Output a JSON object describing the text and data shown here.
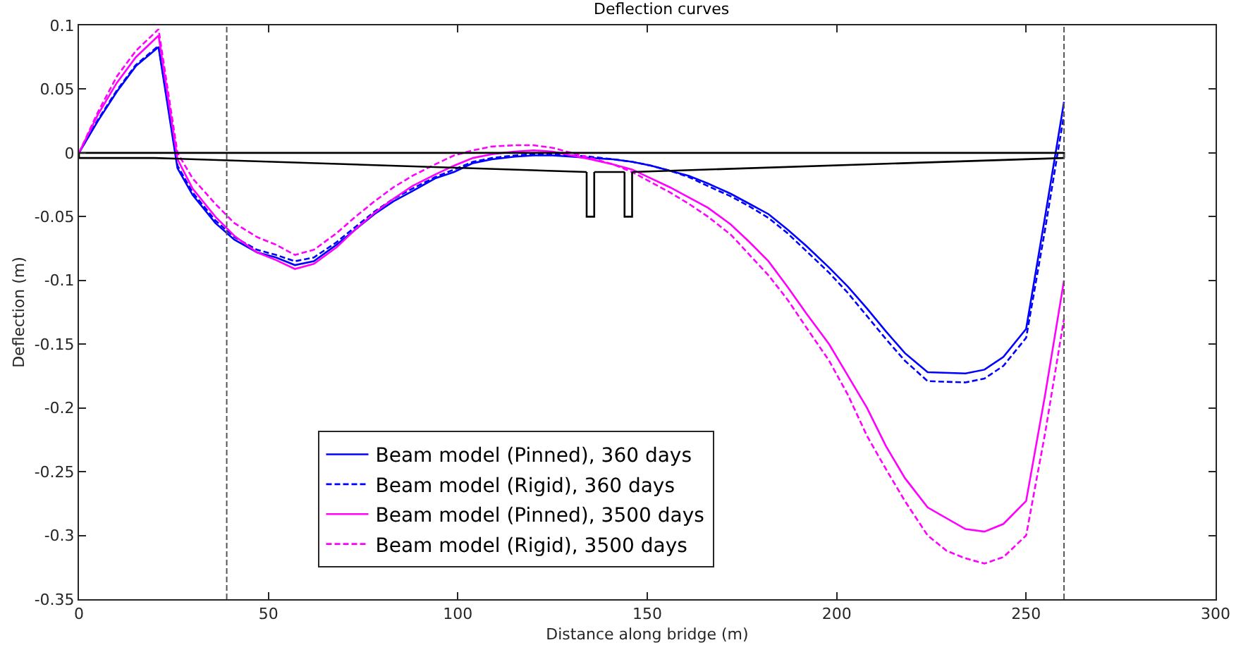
{
  "chart_data": {
    "type": "line",
    "title": "Deflection curves",
    "xlabel": "Distance along bridge (m)",
    "ylabel": "Deflection (m)",
    "xlim": [
      0,
      300
    ],
    "xticks": [
      0,
      50,
      100,
      150,
      200,
      250,
      300
    ],
    "ylim": [
      -0.35,
      0.1
    ],
    "yticks": [
      -0.35,
      -0.3,
      -0.25,
      -0.2,
      -0.15,
      -0.1,
      -0.05,
      0,
      0.05,
      0.1
    ],
    "legend": "bottom",
    "series": [
      {
        "name": "Beam model (Pinned), 360 days",
        "color": "#0000ff",
        "line_style": "solid",
        "x": [
          0,
          5,
          10,
          15,
          21,
          26,
          30,
          36,
          41,
          47,
          52,
          57,
          62,
          68,
          73,
          78,
          83,
          88,
          94,
          99,
          104,
          109,
          115,
          120,
          125,
          130,
          135,
          141,
          146,
          151,
          156,
          161,
          166,
          172,
          177,
          182,
          187,
          192,
          198,
          203,
          208,
          213,
          218,
          224,
          234,
          239,
          244,
          250,
          255,
          260
        ],
        "values": [
          0,
          0.025,
          0.048,
          0.068,
          0.083,
          -0.012,
          -0.033,
          -0.055,
          -0.068,
          -0.078,
          -0.082,
          -0.088,
          -0.085,
          -0.072,
          -0.06,
          -0.048,
          -0.038,
          -0.03,
          -0.02,
          -0.015,
          -0.008,
          -0.005,
          -0.003,
          -0.002,
          -0.002,
          -0.003,
          -0.004,
          -0.005,
          -0.007,
          -0.01,
          -0.014,
          -0.018,
          -0.024,
          -0.032,
          -0.04,
          -0.048,
          -0.06,
          -0.073,
          -0.09,
          -0.105,
          -0.122,
          -0.14,
          -0.157,
          -0.172,
          -0.173,
          -0.17,
          -0.16,
          -0.138,
          -0.05,
          0.04
        ]
      },
      {
        "name": "Beam model (Rigid), 360 days",
        "color": "#0000ff",
        "line_style": "dashed",
        "x": [
          0,
          5,
          10,
          15,
          21,
          26,
          30,
          36,
          41,
          47,
          52,
          57,
          62,
          68,
          73,
          78,
          83,
          88,
          94,
          99,
          104,
          109,
          115,
          120,
          125,
          130,
          135,
          141,
          146,
          151,
          156,
          161,
          166,
          172,
          177,
          182,
          187,
          192,
          198,
          203,
          208,
          213,
          218,
          224,
          234,
          239,
          244,
          250,
          255,
          260
        ],
        "values": [
          0,
          0.026,
          0.049,
          0.069,
          0.084,
          -0.01,
          -0.031,
          -0.053,
          -0.066,
          -0.076,
          -0.08,
          -0.085,
          -0.082,
          -0.07,
          -0.058,
          -0.046,
          -0.036,
          -0.028,
          -0.019,
          -0.013,
          -0.007,
          -0.004,
          -0.002,
          -0.001,
          -0.001,
          -0.002,
          -0.003,
          -0.005,
          -0.007,
          -0.01,
          -0.014,
          -0.019,
          -0.026,
          -0.034,
          -0.042,
          -0.051,
          -0.063,
          -0.077,
          -0.094,
          -0.11,
          -0.128,
          -0.146,
          -0.163,
          -0.179,
          -0.18,
          -0.177,
          -0.167,
          -0.145,
          -0.06,
          0.03
        ]
      },
      {
        "name": "Beam model (Pinned), 3500 days",
        "color": "#ff00ff",
        "line_style": "solid",
        "x": [
          0,
          5,
          10,
          15,
          21,
          26,
          30,
          36,
          41,
          47,
          52,
          57,
          62,
          68,
          73,
          78,
          83,
          88,
          94,
          99,
          104,
          109,
          115,
          120,
          125,
          130,
          135,
          141,
          146,
          151,
          156,
          161,
          166,
          172,
          177,
          182,
          187,
          192,
          198,
          203,
          208,
          213,
          218,
          224,
          234,
          239,
          244,
          250,
          255,
          260
        ],
        "values": [
          0,
          0.03,
          0.055,
          0.075,
          0.092,
          -0.005,
          -0.028,
          -0.05,
          -0.065,
          -0.078,
          -0.084,
          -0.091,
          -0.087,
          -0.074,
          -0.06,
          -0.047,
          -0.036,
          -0.026,
          -0.017,
          -0.01,
          -0.004,
          -0.001,
          0.001,
          0.002,
          0.001,
          -0.002,
          -0.005,
          -0.009,
          -0.013,
          -0.02,
          -0.027,
          -0.035,
          -0.043,
          -0.056,
          -0.07,
          -0.085,
          -0.105,
          -0.126,
          -0.15,
          -0.175,
          -0.2,
          -0.23,
          -0.255,
          -0.278,
          -0.295,
          -0.297,
          -0.291,
          -0.273,
          -0.19,
          -0.1
        ]
      },
      {
        "name": "Beam model (Rigid), 3500 days",
        "color": "#ff00ff",
        "line_style": "dashed",
        "x": [
          0,
          5,
          10,
          15,
          21,
          26,
          30,
          36,
          41,
          47,
          52,
          57,
          62,
          68,
          73,
          78,
          83,
          88,
          94,
          99,
          104,
          109,
          115,
          120,
          125,
          130,
          135,
          141,
          146,
          151,
          156,
          161,
          166,
          172,
          177,
          182,
          187,
          192,
          198,
          203,
          208,
          213,
          218,
          224,
          229,
          234,
          239,
          244,
          250,
          255,
          260
        ],
        "values": [
          0,
          0.032,
          0.06,
          0.08,
          0.097,
          0.0,
          -0.02,
          -0.04,
          -0.055,
          -0.066,
          -0.072,
          -0.08,
          -0.076,
          -0.063,
          -0.05,
          -0.038,
          -0.027,
          -0.018,
          -0.009,
          -0.002,
          0.002,
          0.005,
          0.006,
          0.006,
          0.004,
          0.0,
          -0.004,
          -0.009,
          -0.015,
          -0.023,
          -0.031,
          -0.04,
          -0.05,
          -0.064,
          -0.08,
          -0.096,
          -0.115,
          -0.137,
          -0.163,
          -0.19,
          -0.222,
          -0.248,
          -0.273,
          -0.3,
          -0.312,
          -0.318,
          -0.322,
          -0.317,
          -0.3,
          -0.22,
          -0.13
        ]
      },
      {
        "color": "#000000",
        "line_style": "solid",
        "x": [
          0,
          0,
          260,
          260
        ],
        "values": [
          -0.004,
          0,
          0,
          -0.004
        ]
      },
      {
        "color": "#000000",
        "line_style": "solid",
        "x": [
          0,
          20,
          134
        ],
        "values": [
          -0.004,
          -0.004,
          -0.015
        ]
      },
      {
        "color": "#000000",
        "line_style": "solid",
        "x": [
          134,
          134,
          136,
          136
        ],
        "values": [
          -0.015,
          -0.05,
          -0.05,
          -0.015
        ]
      },
      {
        "color": "#000000",
        "line_style": "solid",
        "x": [
          136,
          144
        ],
        "values": [
          -0.015,
          -0.015
        ]
      },
      {
        "color": "#000000",
        "line_style": "solid",
        "x": [
          144,
          144,
          146,
          146
        ],
        "values": [
          -0.015,
          -0.05,
          -0.05,
          -0.015
        ]
      },
      {
        "color": "#000000",
        "line_style": "solid",
        "x": [
          146,
          260
        ],
        "values": [
          -0.015,
          -0.004
        ]
      }
    ],
    "ref_lines": [
      {
        "axis": "x",
        "value": 39,
        "color": "#555555",
        "line_style": "dashed"
      },
      {
        "axis": "x",
        "value": 260,
        "color": "#555555",
        "line_style": "dashed"
      }
    ]
  }
}
